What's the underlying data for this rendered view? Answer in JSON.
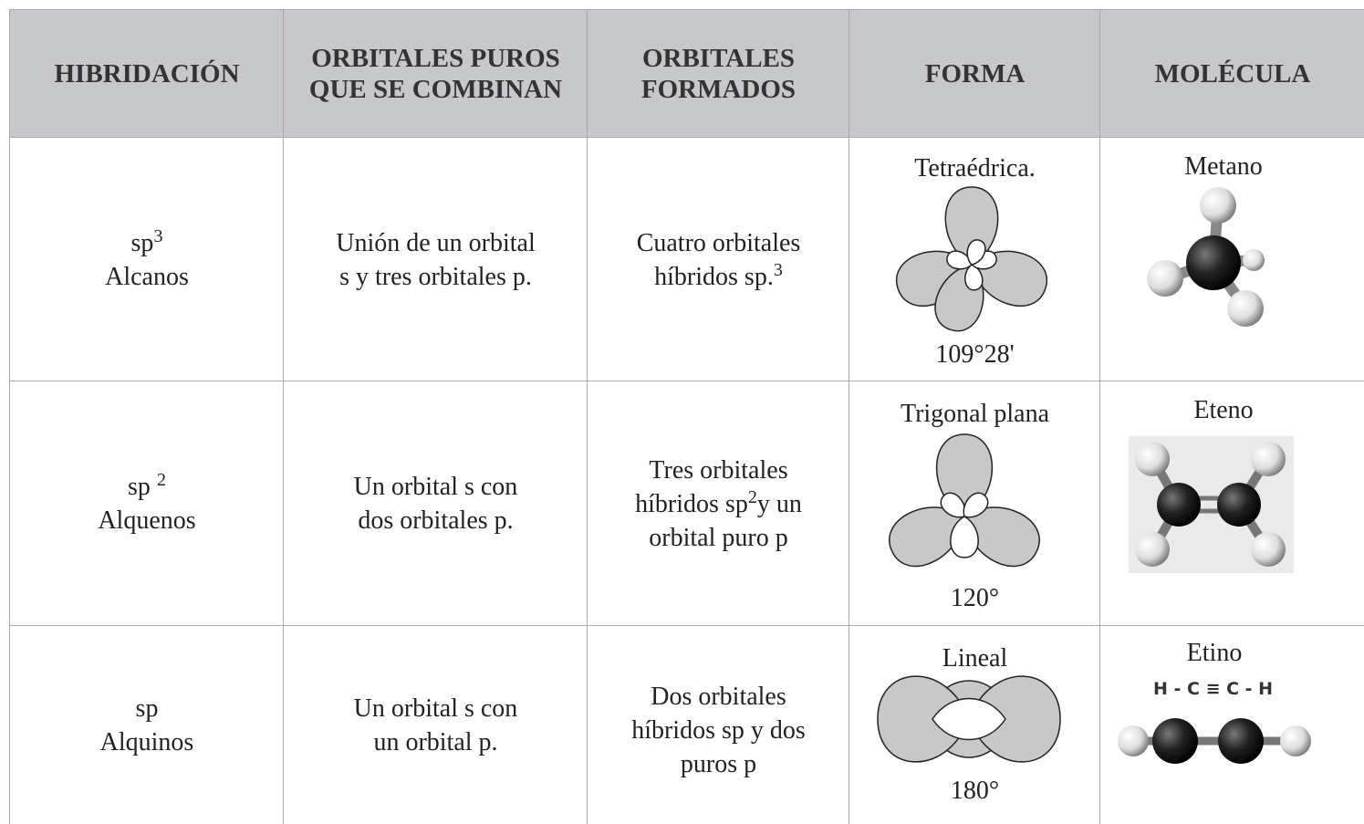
{
  "table": {
    "header": [
      [
        "HIBRIDACIÓN"
      ],
      [
        "ORBITALES PUROS",
        "QUE SE COMBINAN"
      ],
      [
        "ORBITALES",
        "FORMADOS"
      ],
      [
        "FORMA"
      ],
      [
        "MOLÉCULA"
      ]
    ],
    "rows": [
      {
        "hybrid": [
          [
            "sp",
            {
              "sup": "3"
            }
          ],
          [
            "Alcanos"
          ]
        ],
        "pure": [
          [
            "Unión de un orbital"
          ],
          [
            "s y tres orbitales p."
          ]
        ],
        "formed": [
          [
            "Cuatro orbitales"
          ],
          [
            "híbridos  sp.",
            {
              "sup": "3"
            }
          ]
        ],
        "shape": "Tetraédrica.",
        "angle": "109°28'",
        "molecule": "Metano"
      },
      {
        "hybrid": [
          [
            "sp ",
            {
              "sup": "2"
            }
          ],
          [
            "Alquenos"
          ]
        ],
        "pure": [
          [
            "Un orbital s con"
          ],
          [
            "dos orbitales p."
          ]
        ],
        "formed": [
          [
            "Tres orbitales"
          ],
          [
            "híbridos sp",
            {
              "sup": "2"
            },
            "y un"
          ],
          [
            "orbital puro p"
          ]
        ],
        "shape": "Trigonal plana",
        "angle": "120°",
        "molecule": "Eteno"
      },
      {
        "hybrid": [
          [
            "sp"
          ],
          [
            "Alquinos"
          ]
        ],
        "pure": [
          [
            "Un orbital s con"
          ],
          [
            "un orbital p."
          ]
        ],
        "formed": [
          [
            "Dos orbitales"
          ],
          [
            "híbridos sp y dos"
          ],
          [
            "puros p"
          ]
        ],
        "shape": "Lineal",
        "angle": "180°",
        "molecule": "Etino",
        "formula": "H - C ≡ C - H"
      }
    ]
  }
}
